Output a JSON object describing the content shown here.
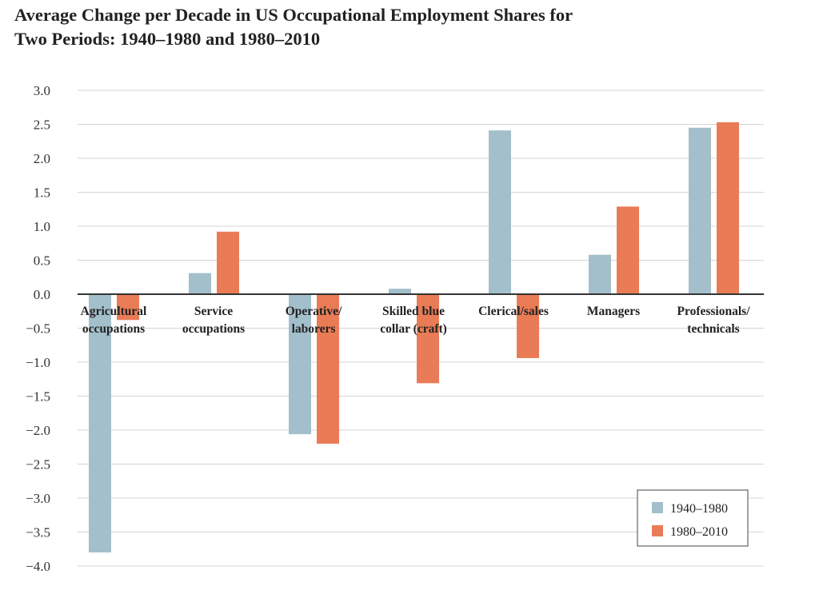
{
  "chart_data": {
    "type": "bar",
    "title_lines": [
      "Average Change per Decade in US Occupational Employment Shares for",
      "Two Periods: 1940–1980 and 1980–2010"
    ],
    "categories": [
      [
        "Agricultural",
        "occupations"
      ],
      [
        "Service",
        "occupations"
      ],
      [
        "Operative/",
        "laborers"
      ],
      [
        "Skilled blue",
        "collar (craft)"
      ],
      [
        "Clerical/sales"
      ],
      [
        "Managers"
      ],
      [
        "Professionals/",
        "technicals"
      ]
    ],
    "series": [
      {
        "name": "1940–1980",
        "color": "#a3bfcb",
        "values": [
          -3.8,
          0.31,
          -2.06,
          0.08,
          2.41,
          0.58,
          2.45
        ]
      },
      {
        "name": "1980–2010",
        "color": "#e97c56",
        "values": [
          -0.38,
          0.92,
          -2.2,
          -1.31,
          -0.94,
          1.29,
          2.53
        ]
      }
    ],
    "ylim": [
      -4.0,
      3.0
    ],
    "yticks": [
      "3.0",
      "2.5",
      "2.0",
      "1.5",
      "1.0",
      "0.5",
      "0.0",
      "−0.5",
      "−1.0",
      "−1.5",
      "−2.0",
      "−2.5",
      "−3.0",
      "−3.5",
      "−4.0"
    ],
    "grid": true,
    "legend": "bottom-right",
    "xlabel": "",
    "ylabel": ""
  }
}
